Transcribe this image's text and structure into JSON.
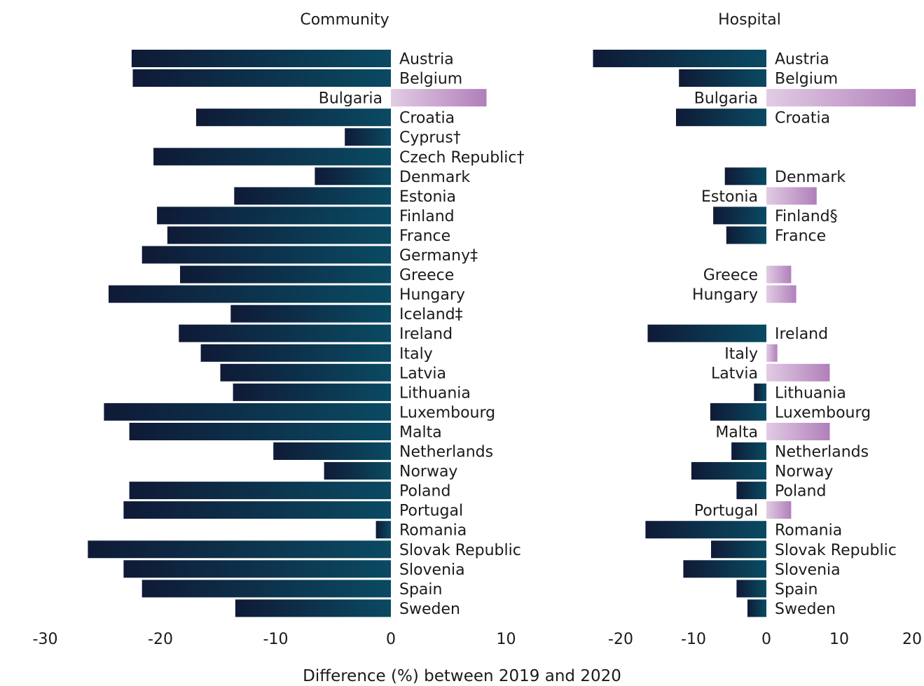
{
  "chart_data": [
    {
      "type": "bar",
      "orientation": "horizontal",
      "title": "Community",
      "xlim": [
        -30,
        10
      ],
      "xticks": [
        -30,
        -20,
        -10,
        0,
        10
      ],
      "xtick_labels": [
        "-30",
        "-20",
        "-10",
        "0",
        "10"
      ],
      "categories": [
        "Austria",
        "Belgium",
        "Bulgaria",
        "Croatia",
        "Cyprus†",
        "Czech Republic†",
        "Denmark",
        "Estonia",
        "Finland",
        "France",
        "Germany‡",
        "Greece",
        "Hungary",
        "Iceland‡",
        "Ireland",
        "Italy",
        "Latvia",
        "Lithuania",
        "Luxembourg",
        "Malta",
        "Netherlands",
        "Norway",
        "Poland",
        "Portugal",
        "Romania",
        "Slovak Republic",
        "Slovenia",
        "Spain",
        "Sweden"
      ],
      "values": [
        -22.5,
        -22.4,
        8.3,
        -16.9,
        -4.0,
        -20.6,
        -6.6,
        -13.6,
        -20.3,
        -19.4,
        -21.6,
        -18.3,
        -24.5,
        -13.9,
        -18.4,
        -16.5,
        -14.8,
        -13.7,
        -24.9,
        -22.7,
        -10.2,
        -5.8,
        -22.7,
        -23.2,
        -1.3,
        -26.3,
        -23.2,
        -21.6,
        -13.5
      ]
    },
    {
      "type": "bar",
      "orientation": "horizontal",
      "title": "Hospital",
      "xlim": [
        -20,
        20
      ],
      "xticks": [
        -20,
        -10,
        0,
        10,
        20
      ],
      "xtick_labels": [
        "-20",
        "-10",
        "0",
        "10",
        "20"
      ],
      "categories": [
        "Austria",
        "Belgium",
        "Bulgaria",
        "Croatia",
        "Cyprus†",
        "Czech Republic†",
        "Denmark",
        "Estonia",
        "Finland§",
        "France",
        "Germany‡",
        "Greece",
        "Hungary",
        "Iceland‡",
        "Ireland",
        "Italy",
        "Latvia",
        "Lithuania",
        "Luxembourg",
        "Malta",
        "Netherlands",
        "Norway",
        "Poland",
        "Portugal",
        "Romania",
        "Slovak Republic",
        "Slovenia",
        "Spain",
        "Sweden"
      ],
      "values": [
        -23.8,
        -12.0,
        20.5,
        -12.4,
        null,
        null,
        -5.7,
        6.9,
        -7.3,
        -5.5,
        null,
        3.4,
        4.1,
        null,
        -16.3,
        1.5,
        8.7,
        -1.7,
        -7.7,
        8.7,
        -4.8,
        -10.3,
        -4.1,
        3.4,
        -16.6,
        -7.6,
        -11.4,
        -4.1,
        -2.6
      ]
    }
  ],
  "xlabel": "Difference (%) between 2019 and 2020",
  "colors": {
    "negative_start": "#0f1a36",
    "negative_end": "#0a4a62",
    "positive_start": "#e2cce4",
    "positive_end": "#b07fba",
    "label": "#1a1a1a"
  }
}
